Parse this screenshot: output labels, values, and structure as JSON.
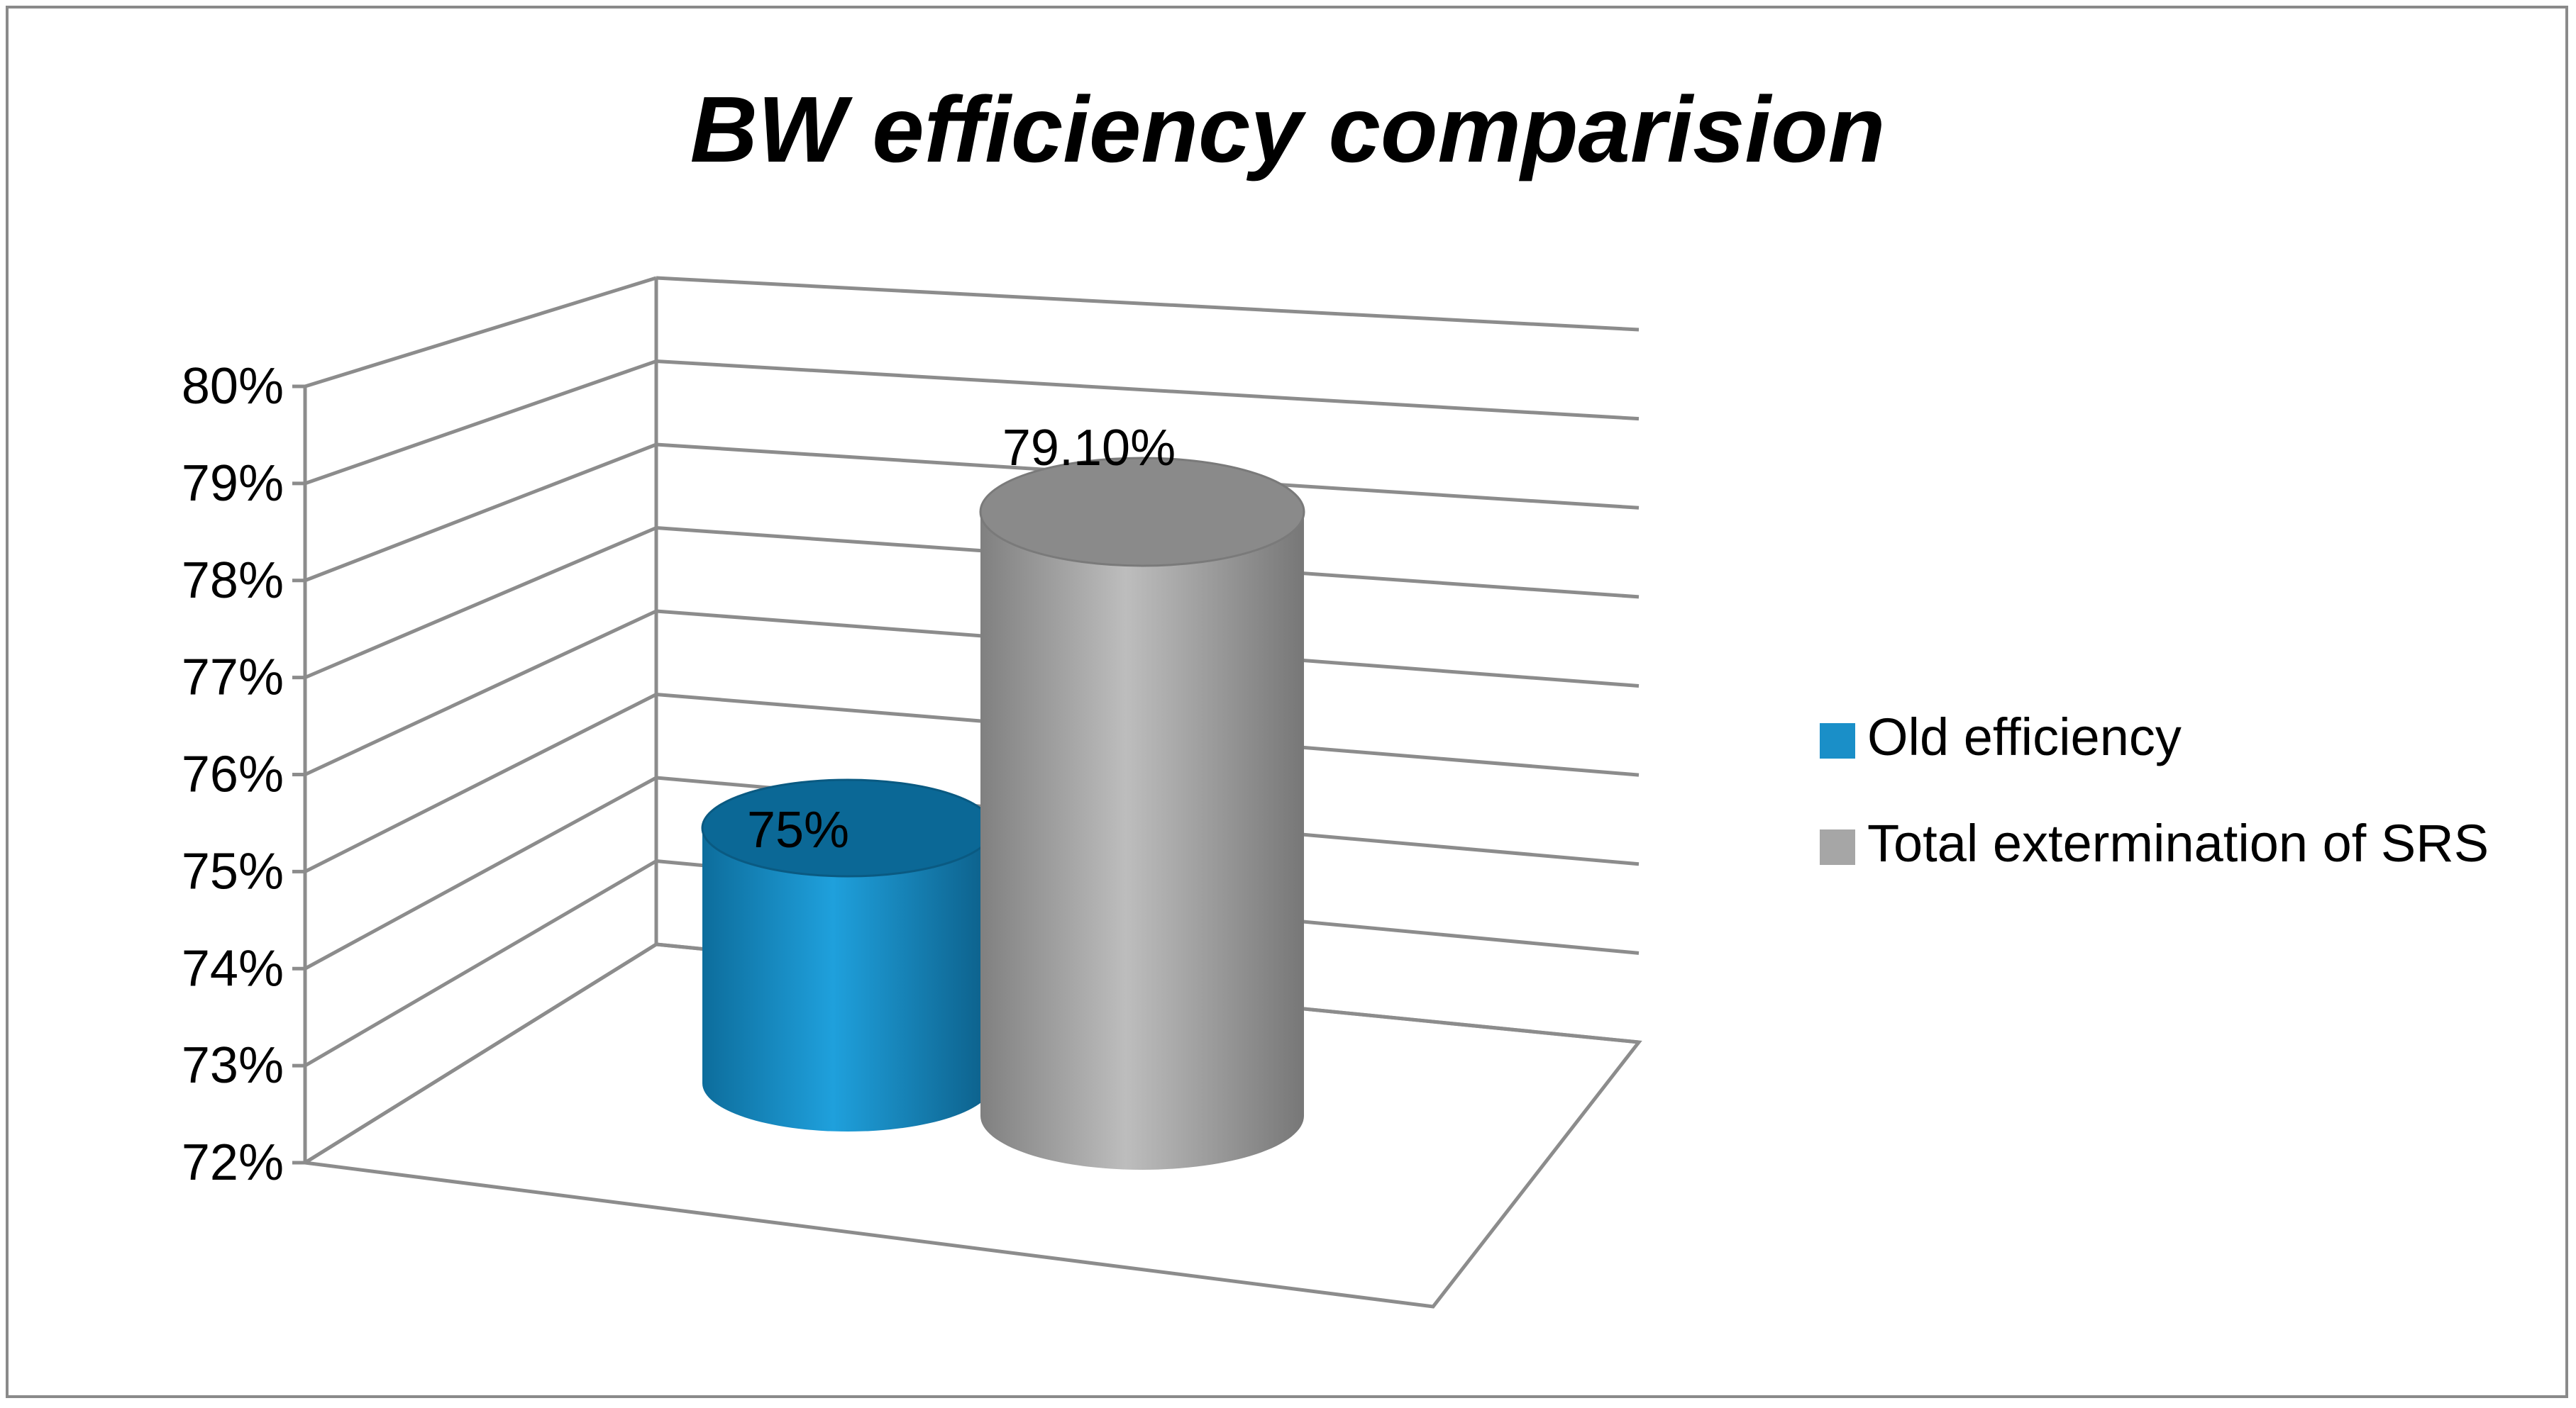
{
  "chart_data": {
    "type": "bar",
    "style": "3d-cylinder",
    "title": "BW efficiency comparision",
    "xlabel": "",
    "ylabel": "",
    "ylim": [
      72,
      80
    ],
    "yticks": [
      72,
      73,
      74,
      75,
      76,
      77,
      78,
      79,
      80
    ],
    "ytick_labels": [
      "72%",
      "73%",
      "74%",
      "75%",
      "76%",
      "77%",
      "78%",
      "79%",
      "80%"
    ],
    "grid": true,
    "legend_position": "right",
    "series": [
      {
        "name": "Old efficiency",
        "value": 75,
        "label": "75%",
        "color": "#1a8fc8"
      },
      {
        "name": "Total extermination of SRS",
        "value": 79.1,
        "label": "79.10%",
        "color": "#a6a6a6"
      }
    ]
  }
}
